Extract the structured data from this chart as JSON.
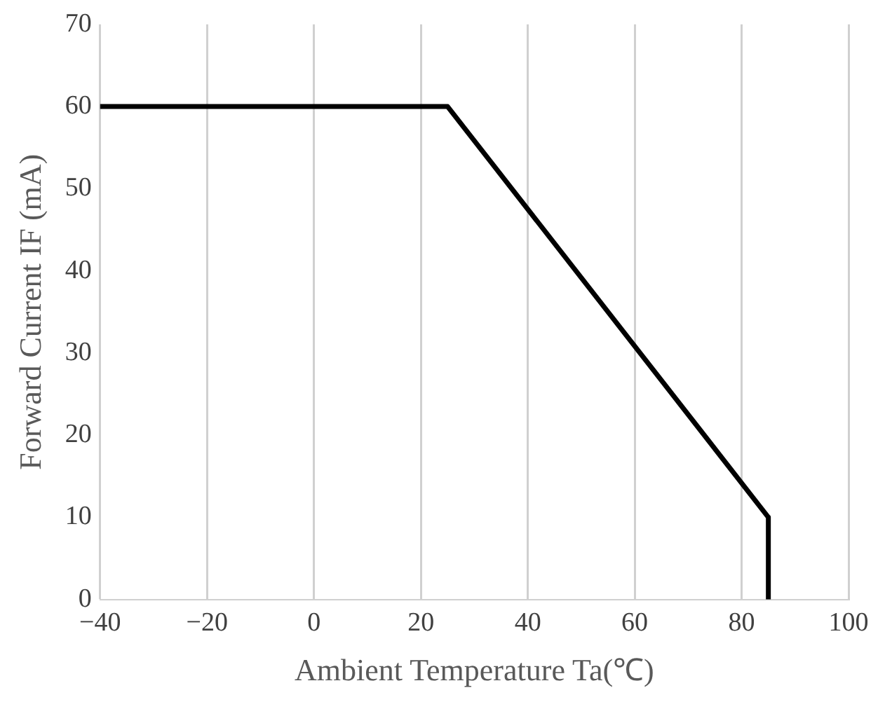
{
  "chart_data": {
    "type": "line",
    "xlabel": "Ambient Temperature Ta(℃)",
    "ylabel": "Forward Current IF (mA)",
    "x": [
      -40,
      25,
      85,
      85
    ],
    "series": [
      {
        "color": "#000000",
        "values": [
          60,
          60,
          10,
          0
        ]
      }
    ],
    "xlim": [
      -40,
      100
    ],
    "xticks": [
      -40,
      -20,
      0,
      20,
      40,
      60,
      80,
      100
    ],
    "ylim": [
      0,
      70
    ],
    "yticks": [
      0,
      10,
      20,
      30,
      40,
      50,
      60,
      70
    ],
    "grid": "x",
    "legend": false,
    "marker": "none",
    "line_style": "solid"
  }
}
